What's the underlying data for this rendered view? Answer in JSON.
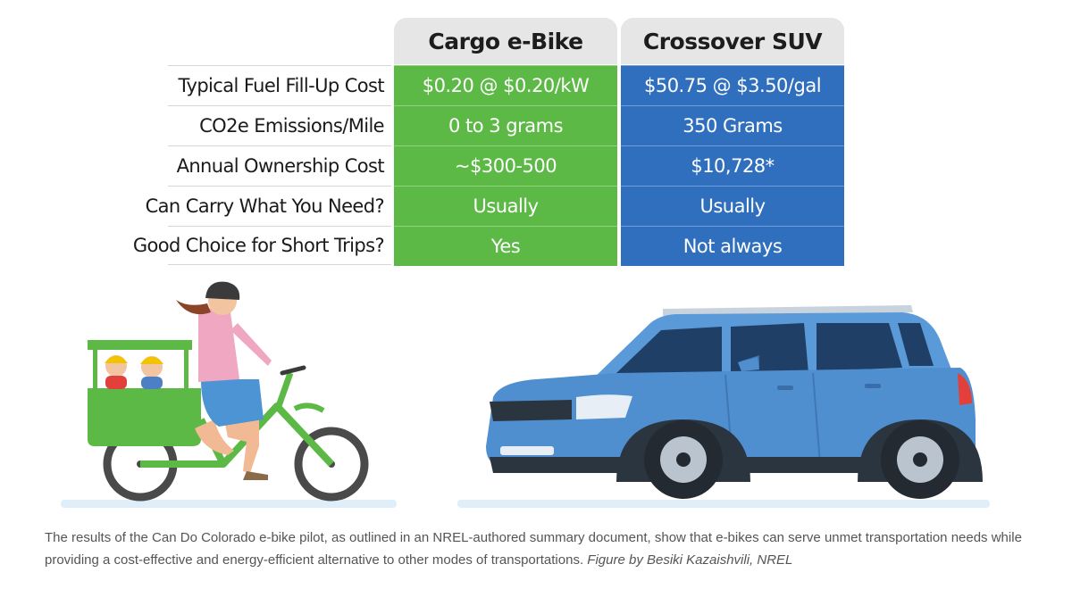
{
  "table": {
    "columns": [
      "Cargo e-Bike",
      "Crossover SUV"
    ],
    "rows": [
      {
        "label": "Typical Fuel Fill-Up Cost",
        "bike": "$0.20 @ $0.20/kW",
        "suv": "$50.75 @ $3.50/gal"
      },
      {
        "label": "CO2e Emissions/Mile",
        "bike": "0 to 3 grams",
        "suv": "350 Grams"
      },
      {
        "label": "Annual Ownership Cost",
        "bike": "~$300-500",
        "suv": "$10,728*"
      },
      {
        "label": "Can Carry What You Need?",
        "bike": "Usually",
        "suv": "Usually"
      },
      {
        "label": "Good Choice for Short Trips?",
        "bike": "Yes",
        "suv": "Not always"
      }
    ],
    "colors": {
      "bike": "#5cb946",
      "suv": "#2f6fbe",
      "header": "#e6e6e6"
    }
  },
  "caption": {
    "text": "The results of the Can Do Colorado e-bike pilot, as outlined in an NREL-authored summary document, show that e-bikes can serve unmet transportation needs while providing a cost-effective and energy-efficient alternative to other modes of transportations. ",
    "credit": "Figure by Besiki Kazaishvili, NREL"
  },
  "illustration": {
    "bike_icon": "cargo-ebike-icon",
    "suv_icon": "crossover-suv-icon"
  }
}
